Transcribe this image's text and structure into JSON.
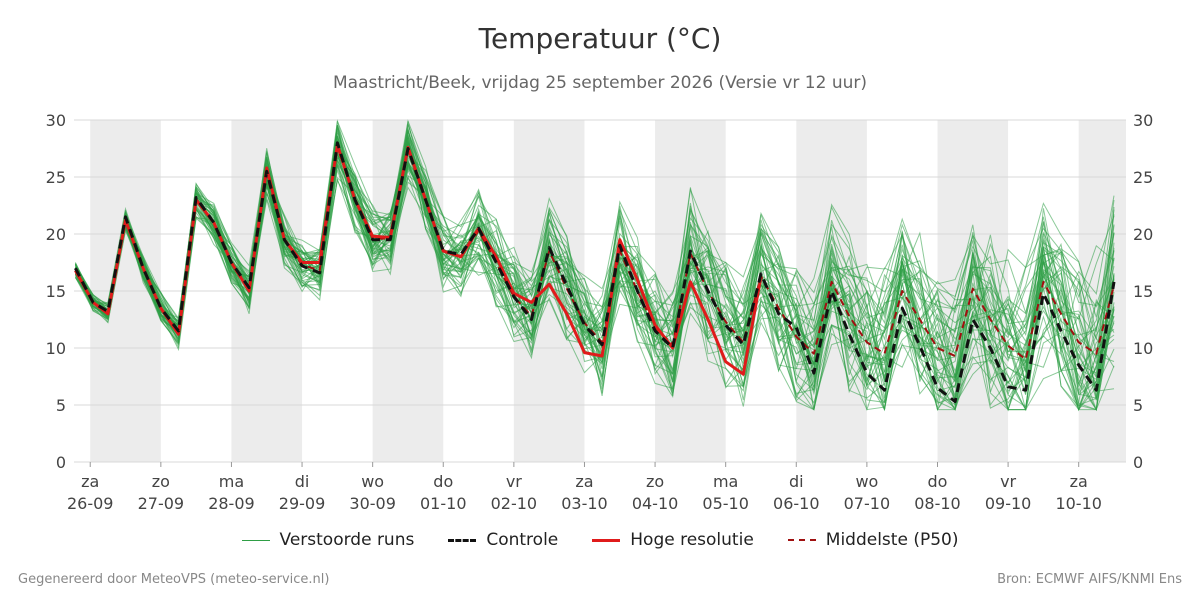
{
  "header": {
    "title": "Temperatuur (°C)",
    "subtitle": "Maastricht/Beek, vrijdag 25 september 2026 (Versie vr 12 uur)"
  },
  "legend": {
    "runs": "Verstoorde runs",
    "control": "Controle",
    "hires": "Hoge resolutie",
    "median": "Middelste (P50)"
  },
  "footer": {
    "left": "Gegenereerd door MeteoVPS (meteo-service.nl)",
    "right": "Bron: ECMWF AIFS/KNMI Ens"
  },
  "colors": {
    "runs": "#2e9e45",
    "control": "#111111",
    "hires": "#e01b1b",
    "median": "#a01010",
    "band": "#ececec",
    "grid": "#d8d8d8"
  },
  "chart_data": {
    "type": "line",
    "title": "Temperatuur (°C)",
    "ylim": [
      0,
      30
    ],
    "yticks": [
      0,
      5,
      10,
      15,
      20,
      25,
      30
    ],
    "xlim": [
      -0.23,
      14.67
    ],
    "x_unit": "days since 26-09 00:00",
    "xticks": [
      {
        "day": "za",
        "date": "26-09"
      },
      {
        "day": "zo",
        "date": "27-09"
      },
      {
        "day": "ma",
        "date": "28-09"
      },
      {
        "day": "di",
        "date": "29-09"
      },
      {
        "day": "wo",
        "date": "30-09"
      },
      {
        "day": "do",
        "date": "01-10"
      },
      {
        "day": "vr",
        "date": "02-10"
      },
      {
        "day": "za",
        "date": "03-10"
      },
      {
        "day": "zo",
        "date": "04-10"
      },
      {
        "day": "ma",
        "date": "05-10"
      },
      {
        "day": "di",
        "date": "06-10"
      },
      {
        "day": "wo",
        "date": "07-10"
      },
      {
        "day": "do",
        "date": "08-10"
      },
      {
        "day": "vr",
        "date": "09-10"
      },
      {
        "day": "za",
        "date": "10-10"
      }
    ],
    "shaded_days": [
      0,
      2,
      4,
      6,
      8,
      10,
      12,
      14
    ],
    "grid": true,
    "legend_position": "bottom",
    "series": [
      {
        "name": "Controle",
        "style": "dashed",
        "color": "#111111",
        "points": [
          [
            -0.21,
            17.0
          ],
          [
            0.04,
            14.0
          ],
          [
            0.25,
            13.2
          ],
          [
            0.5,
            21.5
          ],
          [
            0.75,
            17.0
          ],
          [
            1.0,
            13.5
          ],
          [
            1.25,
            11.5
          ],
          [
            1.5,
            23.2
          ],
          [
            1.75,
            21.0
          ],
          [
            2.0,
            17.5
          ],
          [
            2.25,
            15.3
          ],
          [
            2.5,
            25.5
          ],
          [
            2.75,
            19.5
          ],
          [
            3.0,
            17.2
          ],
          [
            3.25,
            16.6
          ],
          [
            3.5,
            28.0
          ],
          [
            3.75,
            23.0
          ],
          [
            4.0,
            19.5
          ],
          [
            4.25,
            19.5
          ],
          [
            4.5,
            27.5
          ],
          [
            4.75,
            23.0
          ],
          [
            5.0,
            18.5
          ],
          [
            5.25,
            18.2
          ],
          [
            5.5,
            20.5
          ],
          [
            5.75,
            17.5
          ],
          [
            6.0,
            14.5
          ],
          [
            6.25,
            12.5
          ],
          [
            6.5,
            18.8
          ],
          [
            6.75,
            15.5
          ],
          [
            7.0,
            12.0
          ],
          [
            7.25,
            10.3
          ],
          [
            7.5,
            19.0
          ],
          [
            7.75,
            15.0
          ],
          [
            8.0,
            11.5
          ],
          [
            8.25,
            10.0
          ],
          [
            8.5,
            18.5
          ],
          [
            8.75,
            15.0
          ],
          [
            9.0,
            12.0
          ],
          [
            9.25,
            10.3
          ],
          [
            9.5,
            16.5
          ],
          [
            9.75,
            13.0
          ],
          [
            10.0,
            11.8
          ],
          [
            10.25,
            7.8
          ],
          [
            10.5,
            15.0
          ],
          [
            10.75,
            11.2
          ],
          [
            11.0,
            7.8
          ],
          [
            11.25,
            6.3
          ],
          [
            11.5,
            13.5
          ],
          [
            11.75,
            10.2
          ],
          [
            12.0,
            6.5
          ],
          [
            12.25,
            5.3
          ],
          [
            12.5,
            12.5
          ],
          [
            12.75,
            10.0
          ],
          [
            13.0,
            6.6
          ],
          [
            13.25,
            6.3
          ],
          [
            13.5,
            14.8
          ],
          [
            13.75,
            11.5
          ],
          [
            14.0,
            8.5
          ],
          [
            14.25,
            6.3
          ],
          [
            14.5,
            15.8
          ]
        ]
      },
      {
        "name": "Hoge resolutie",
        "style": "solid",
        "color": "#e01b1b",
        "points": [
          [
            -0.21,
            16.8
          ],
          [
            0.04,
            14.0
          ],
          [
            0.25,
            13.0
          ],
          [
            0.5,
            21.2
          ],
          [
            0.75,
            17.0
          ],
          [
            1.0,
            13.5
          ],
          [
            1.25,
            11.2
          ],
          [
            1.5,
            23.0
          ],
          [
            1.75,
            21.0
          ],
          [
            2.0,
            17.5
          ],
          [
            2.25,
            15.0
          ],
          [
            2.5,
            25.8
          ],
          [
            2.75,
            19.5
          ],
          [
            3.0,
            17.5
          ],
          [
            3.25,
            17.5
          ],
          [
            3.5,
            27.8
          ],
          [
            3.75,
            23.0
          ],
          [
            4.0,
            19.8
          ],
          [
            4.25,
            19.7
          ],
          [
            4.5,
            27.6
          ],
          [
            4.75,
            23.0
          ],
          [
            5.0,
            18.5
          ],
          [
            5.25,
            18.0
          ],
          [
            5.5,
            20.5
          ],
          [
            5.75,
            18.0
          ],
          [
            6.0,
            14.8
          ],
          [
            6.25,
            14.0
          ],
          [
            6.5,
            15.6
          ],
          [
            6.75,
            13.0
          ],
          [
            7.0,
            9.6
          ],
          [
            7.25,
            9.3
          ],
          [
            7.5,
            19.5
          ],
          [
            7.75,
            16.0
          ],
          [
            8.0,
            12.0
          ],
          [
            8.25,
            10.0
          ],
          [
            8.5,
            15.8
          ],
          [
            8.75,
            12.5
          ],
          [
            9.0,
            8.8
          ],
          [
            9.25,
            7.7
          ],
          [
            9.5,
            16.3
          ]
        ]
      },
      {
        "name": "Middelste (P50)",
        "style": "dashed",
        "color": "#a01010",
        "points": [
          [
            -0.21,
            16.8
          ],
          [
            0.04,
            14.0
          ],
          [
            0.25,
            13.1
          ],
          [
            0.5,
            21.3
          ],
          [
            0.75,
            17.0
          ],
          [
            1.0,
            13.5
          ],
          [
            1.25,
            11.4
          ],
          [
            1.5,
            23.0
          ],
          [
            1.75,
            21.0
          ],
          [
            2.0,
            17.5
          ],
          [
            2.25,
            15.2
          ],
          [
            2.5,
            25.2
          ],
          [
            2.75,
            19.5
          ],
          [
            3.0,
            17.3
          ],
          [
            3.25,
            16.8
          ],
          [
            3.5,
            27.6
          ],
          [
            3.75,
            23.0
          ],
          [
            4.0,
            19.6
          ],
          [
            4.25,
            19.6
          ],
          [
            4.5,
            27.3
          ],
          [
            4.75,
            23.0
          ],
          [
            5.0,
            18.5
          ],
          [
            5.25,
            18.0
          ],
          [
            5.5,
            20.3
          ],
          [
            5.75,
            17.5
          ],
          [
            6.0,
            14.5
          ],
          [
            6.25,
            12.8
          ],
          [
            6.5,
            18.5
          ],
          [
            6.75,
            15.2
          ],
          [
            7.0,
            12.2
          ],
          [
            7.25,
            10.5
          ],
          [
            7.5,
            18.5
          ],
          [
            7.75,
            15.0
          ],
          [
            8.0,
            11.8
          ],
          [
            8.25,
            10.3
          ],
          [
            8.5,
            18.3
          ],
          [
            8.75,
            15.0
          ],
          [
            9.0,
            12.3
          ],
          [
            9.25,
            10.5
          ],
          [
            9.5,
            16.3
          ],
          [
            9.75,
            13.5
          ],
          [
            10.0,
            11.0
          ],
          [
            10.25,
            9.5
          ],
          [
            10.5,
            15.8
          ],
          [
            10.75,
            12.8
          ],
          [
            11.0,
            10.5
          ],
          [
            11.25,
            9.5
          ],
          [
            11.5,
            15.0
          ],
          [
            11.75,
            12.5
          ],
          [
            12.0,
            10.0
          ],
          [
            12.25,
            9.3
          ],
          [
            12.5,
            15.2
          ],
          [
            12.75,
            12.5
          ],
          [
            13.0,
            10.2
          ],
          [
            13.25,
            9.0
          ],
          [
            13.5,
            15.8
          ],
          [
            13.75,
            13.0
          ],
          [
            14.0,
            10.5
          ],
          [
            14.25,
            9.5
          ],
          [
            14.5,
            15.5
          ]
        ]
      }
    ],
    "ensemble": {
      "name": "Verstoorde runs",
      "members": 50,
      "step_days": 0.25,
      "x_start": -0.21,
      "reference": "Middelste (P50)"
    }
  }
}
